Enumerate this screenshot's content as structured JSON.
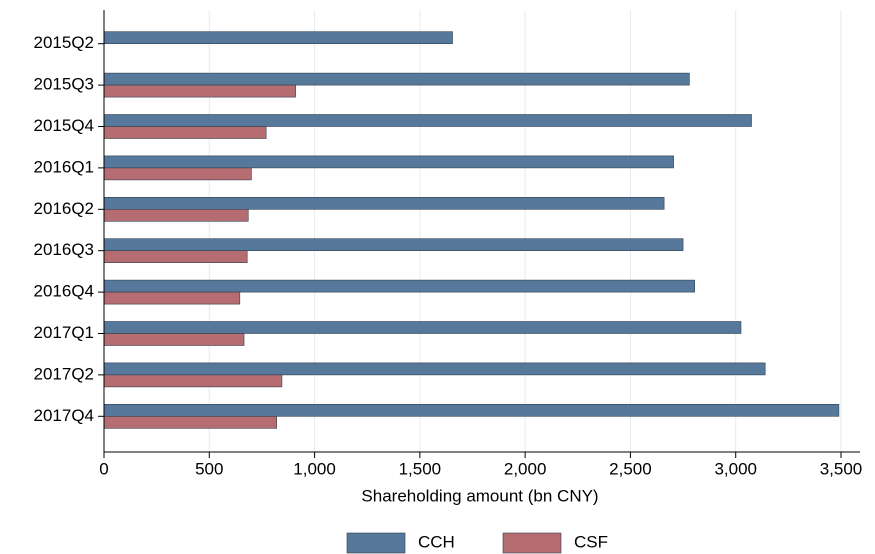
{
  "chart_data": {
    "type": "barh",
    "x_label": "Shareholding amount (bn CNY)",
    "categories": [
      "2015Q2",
      "2015Q3",
      "2015Q4",
      "2016Q1",
      "2016Q2",
      "2016Q3",
      "2016Q4",
      "2017Q1",
      "2017Q2",
      "2017Q4"
    ],
    "series": [
      {
        "name": "CCH",
        "color": "#56789a",
        "values": [
          1655,
          2780,
          3075,
          2705,
          2660,
          2750,
          2805,
          3025,
          3140,
          3490
        ]
      },
      {
        "name": "CSF",
        "color": "#b56d72",
        "values": [
          null,
          910,
          770,
          700,
          685,
          680,
          645,
          665,
          845,
          820
        ]
      }
    ],
    "xlim": [
      0,
      3500
    ],
    "xticks": [
      0,
      500,
      {
        "value": 1000,
        "label": "1,000"
      },
      {
        "value": 1500,
        "label": "1,500"
      },
      {
        "value": 2000,
        "label": "2,000"
      },
      {
        "value": 2500,
        "label": "2,500"
      },
      {
        "value": 3000,
        "label": "3,000"
      },
      {
        "value": 3500,
        "label": "3,500"
      }
    ],
    "grid": true,
    "legend": "bottom"
  }
}
